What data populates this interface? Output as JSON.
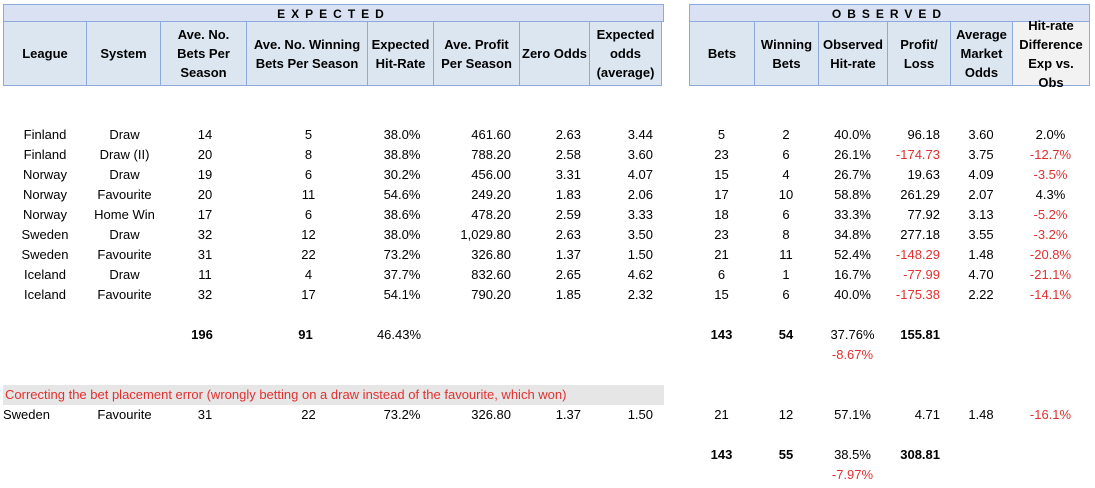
{
  "expected": {
    "title": "EXPECTED",
    "headers": [
      "League",
      "System",
      "Ave. No. Bets Per Season",
      "Ave. No. Winning Bets Per Season",
      "Expected Hit-Rate",
      "Ave. Profit Per Season",
      "Zero Odds",
      "Expected odds (average)"
    ],
    "rows": [
      [
        "Finland",
        "Draw",
        "14",
        "5",
        "38.0%",
        "461.60",
        "2.63",
        "3.44"
      ],
      [
        "Finland",
        "Draw (II)",
        "20",
        "8",
        "38.8%",
        "788.20",
        "2.58",
        "3.60"
      ],
      [
        "Norway",
        "Draw",
        "19",
        "6",
        "30.2%",
        "456.00",
        "3.31",
        "4.07"
      ],
      [
        "Norway",
        "Favourite",
        "20",
        "11",
        "54.6%",
        "249.20",
        "1.83",
        "2.06"
      ],
      [
        "Norway",
        "Home Win",
        "17",
        "6",
        "38.6%",
        "478.20",
        "2.59",
        "3.33"
      ],
      [
        "Sweden",
        "Draw",
        "32",
        "12",
        "38.0%",
        "1,029.80",
        "2.63",
        "3.50"
      ],
      [
        "Sweden",
        "Favourite",
        "31",
        "22",
        "73.2%",
        "326.80",
        "1.37",
        "1.50"
      ],
      [
        "Iceland",
        "Draw",
        "11",
        "4",
        "37.7%",
        "832.60",
        "2.65",
        "4.62"
      ],
      [
        "Iceland",
        "Favourite",
        "32",
        "17",
        "54.1%",
        "790.20",
        "1.85",
        "2.32"
      ]
    ],
    "totals": {
      "bets": "196",
      "wins": "91",
      "hit_rate": "46.43%"
    }
  },
  "observed": {
    "title": "OBSERVED",
    "headers": [
      "Bets",
      "Winning Bets",
      "Observed Hit-rate",
      "Profit/ Loss",
      "Average Market Odds",
      "Hit-rate Difference Exp vs. Obs"
    ],
    "rows": [
      [
        "5",
        "2",
        "40.0%",
        "96.18",
        "3.60",
        "2.0%"
      ],
      [
        "23",
        "6",
        "26.1%",
        "-174.73",
        "3.75",
        "-12.7%"
      ],
      [
        "15",
        "4",
        "26.7%",
        "19.63",
        "4.09",
        "-3.5%"
      ],
      [
        "17",
        "10",
        "58.8%",
        "261.29",
        "2.07",
        "4.3%"
      ],
      [
        "18",
        "6",
        "33.3%",
        "77.92",
        "3.13",
        "-5.2%"
      ],
      [
        "23",
        "8",
        "34.8%",
        "277.18",
        "3.55",
        "-3.2%"
      ],
      [
        "21",
        "11",
        "52.4%",
        "-148.29",
        "1.48",
        "-20.8%"
      ],
      [
        "6",
        "1",
        "16.7%",
        "-77.99",
        "4.70",
        "-21.1%"
      ],
      [
        "15",
        "6",
        "40.0%",
        "-175.38",
        "2.22",
        "-14.1%"
      ]
    ],
    "totals": {
      "bets": "143",
      "wins": "54",
      "hit_rate": "37.76%",
      "profit": "155.81",
      "hit_rate_diff": "-8.67%"
    }
  },
  "correction": {
    "note": "Correcting the bet placement error (wrongly betting on a draw instead of the favourite, which won)",
    "expected_row": [
      "Sweden",
      "Favourite",
      "31",
      "22",
      "73.2%",
      "326.80",
      "1.37",
      "1.50"
    ],
    "observed_row": [
      "21",
      "12",
      "57.1%",
      "4.71",
      "1.48",
      "-16.1%"
    ],
    "totals": {
      "bets": "143",
      "wins": "55",
      "hit_rate": "38.5%",
      "profit": "308.81",
      "hit_rate_diff": "-7.97%"
    }
  },
  "colors": {
    "header_fill": "#dce6f1",
    "band_fill": "#d9e1f2",
    "border": "#8ea9db",
    "negative": "#e03131",
    "note_fill": "#e7e6e6"
  }
}
